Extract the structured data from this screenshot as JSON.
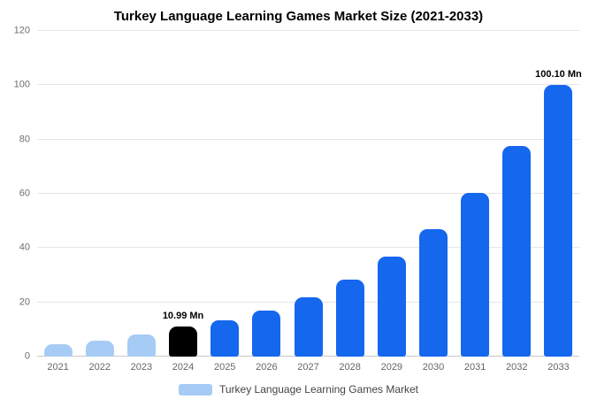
{
  "chart_data": {
    "type": "bar",
    "title": "Turkey Language Learning Games Market Size (2021-2033)",
    "categories": [
      "2021",
      "2022",
      "2023",
      "2024",
      "2025",
      "2026",
      "2027",
      "2028",
      "2029",
      "2030",
      "2031",
      "2032",
      "2033"
    ],
    "values": [
      4.5,
      5.8,
      8.0,
      10.99,
      13.5,
      16.9,
      21.7,
      28.4,
      36.9,
      47.0,
      60.3,
      77.6,
      100.1
    ],
    "unit": "Mn",
    "bar_colors": [
      "light",
      "light",
      "light",
      "black",
      "primary",
      "primary",
      "primary",
      "primary",
      "primary",
      "primary",
      "primary",
      "primary",
      "primary"
    ],
    "annotations": [
      {
        "index": 3,
        "text": "10.99 Mn"
      },
      {
        "index": 12,
        "text": "100.10 Mn"
      }
    ],
    "ylim": [
      0,
      120
    ],
    "yticks": [
      0,
      20,
      40,
      60,
      80,
      100,
      120
    ],
    "grid": true,
    "legend_position": "bottom",
    "colors": {
      "light": "#a6cbf5",
      "black": "#000000",
      "primary": "#1567ee"
    },
    "legend": [
      {
        "label": "Turkey Language Learning Games Market",
        "color": "#a6cbf5"
      }
    ]
  }
}
